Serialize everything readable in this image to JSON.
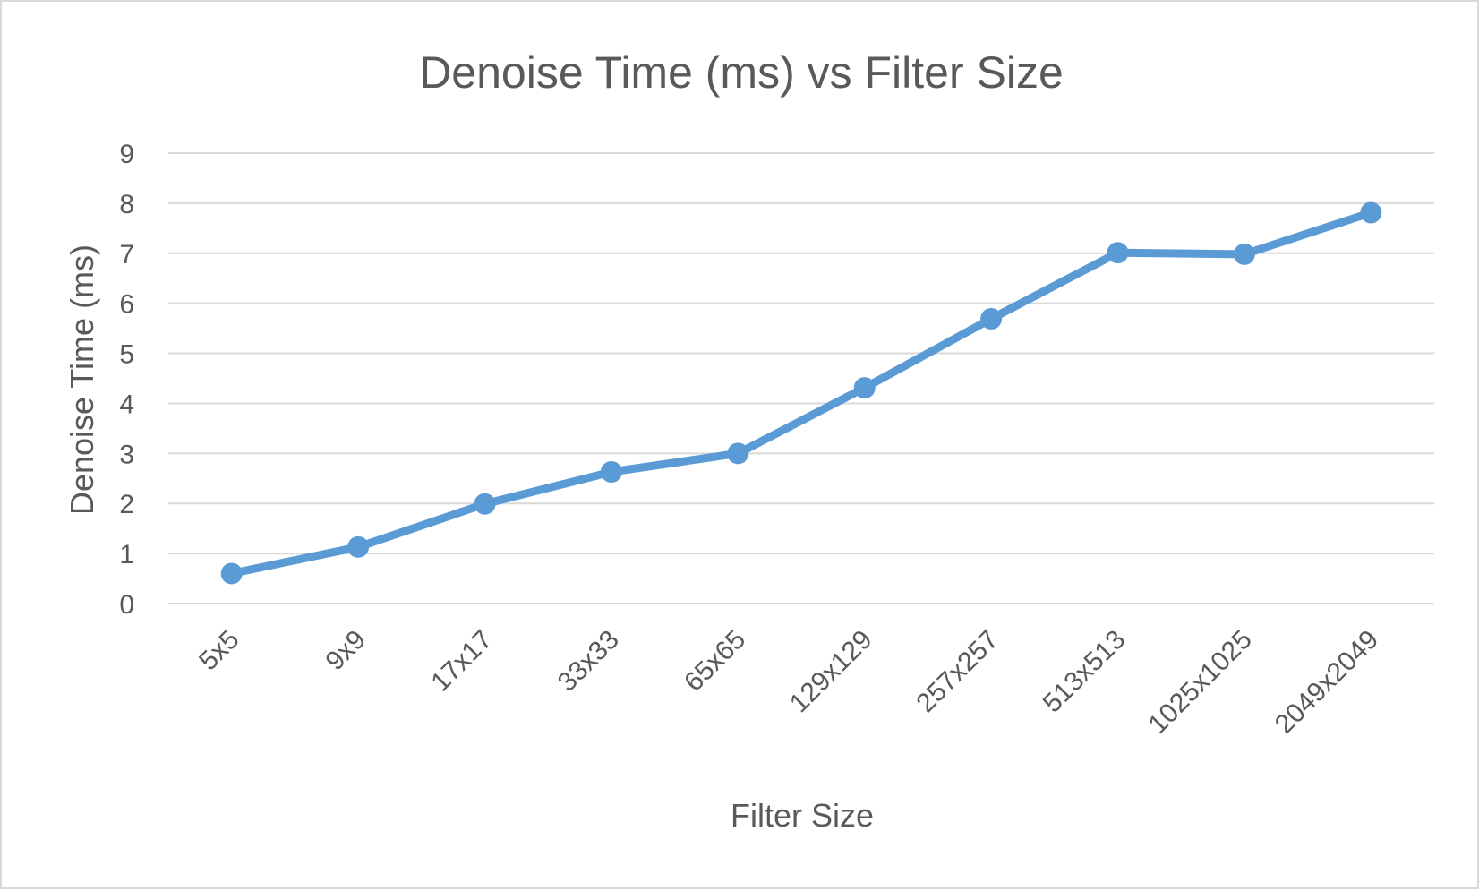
{
  "chart_data": {
    "type": "line",
    "title": "Denoise Time (ms) vs Filter Size",
    "xlabel": "Filter Size",
    "ylabel": "Denoise Time (ms)",
    "categories": [
      "5x5",
      "9x9",
      "17x17",
      "33x33",
      "65x65",
      "129x129",
      "257x257",
      "513x513",
      "1025x1025",
      "2049x2049"
    ],
    "series": [
      {
        "values": [
          0.6,
          1.13,
          1.99,
          2.63,
          3.0,
          4.31,
          5.69,
          7.01,
          6.98,
          7.81
        ],
        "color": "#5b9bd5"
      }
    ],
    "ylim": [
      0,
      9
    ],
    "yticks": [
      0,
      1,
      2,
      3,
      4,
      5,
      6,
      7,
      8,
      9
    ],
    "grid": true,
    "legend": "none"
  }
}
